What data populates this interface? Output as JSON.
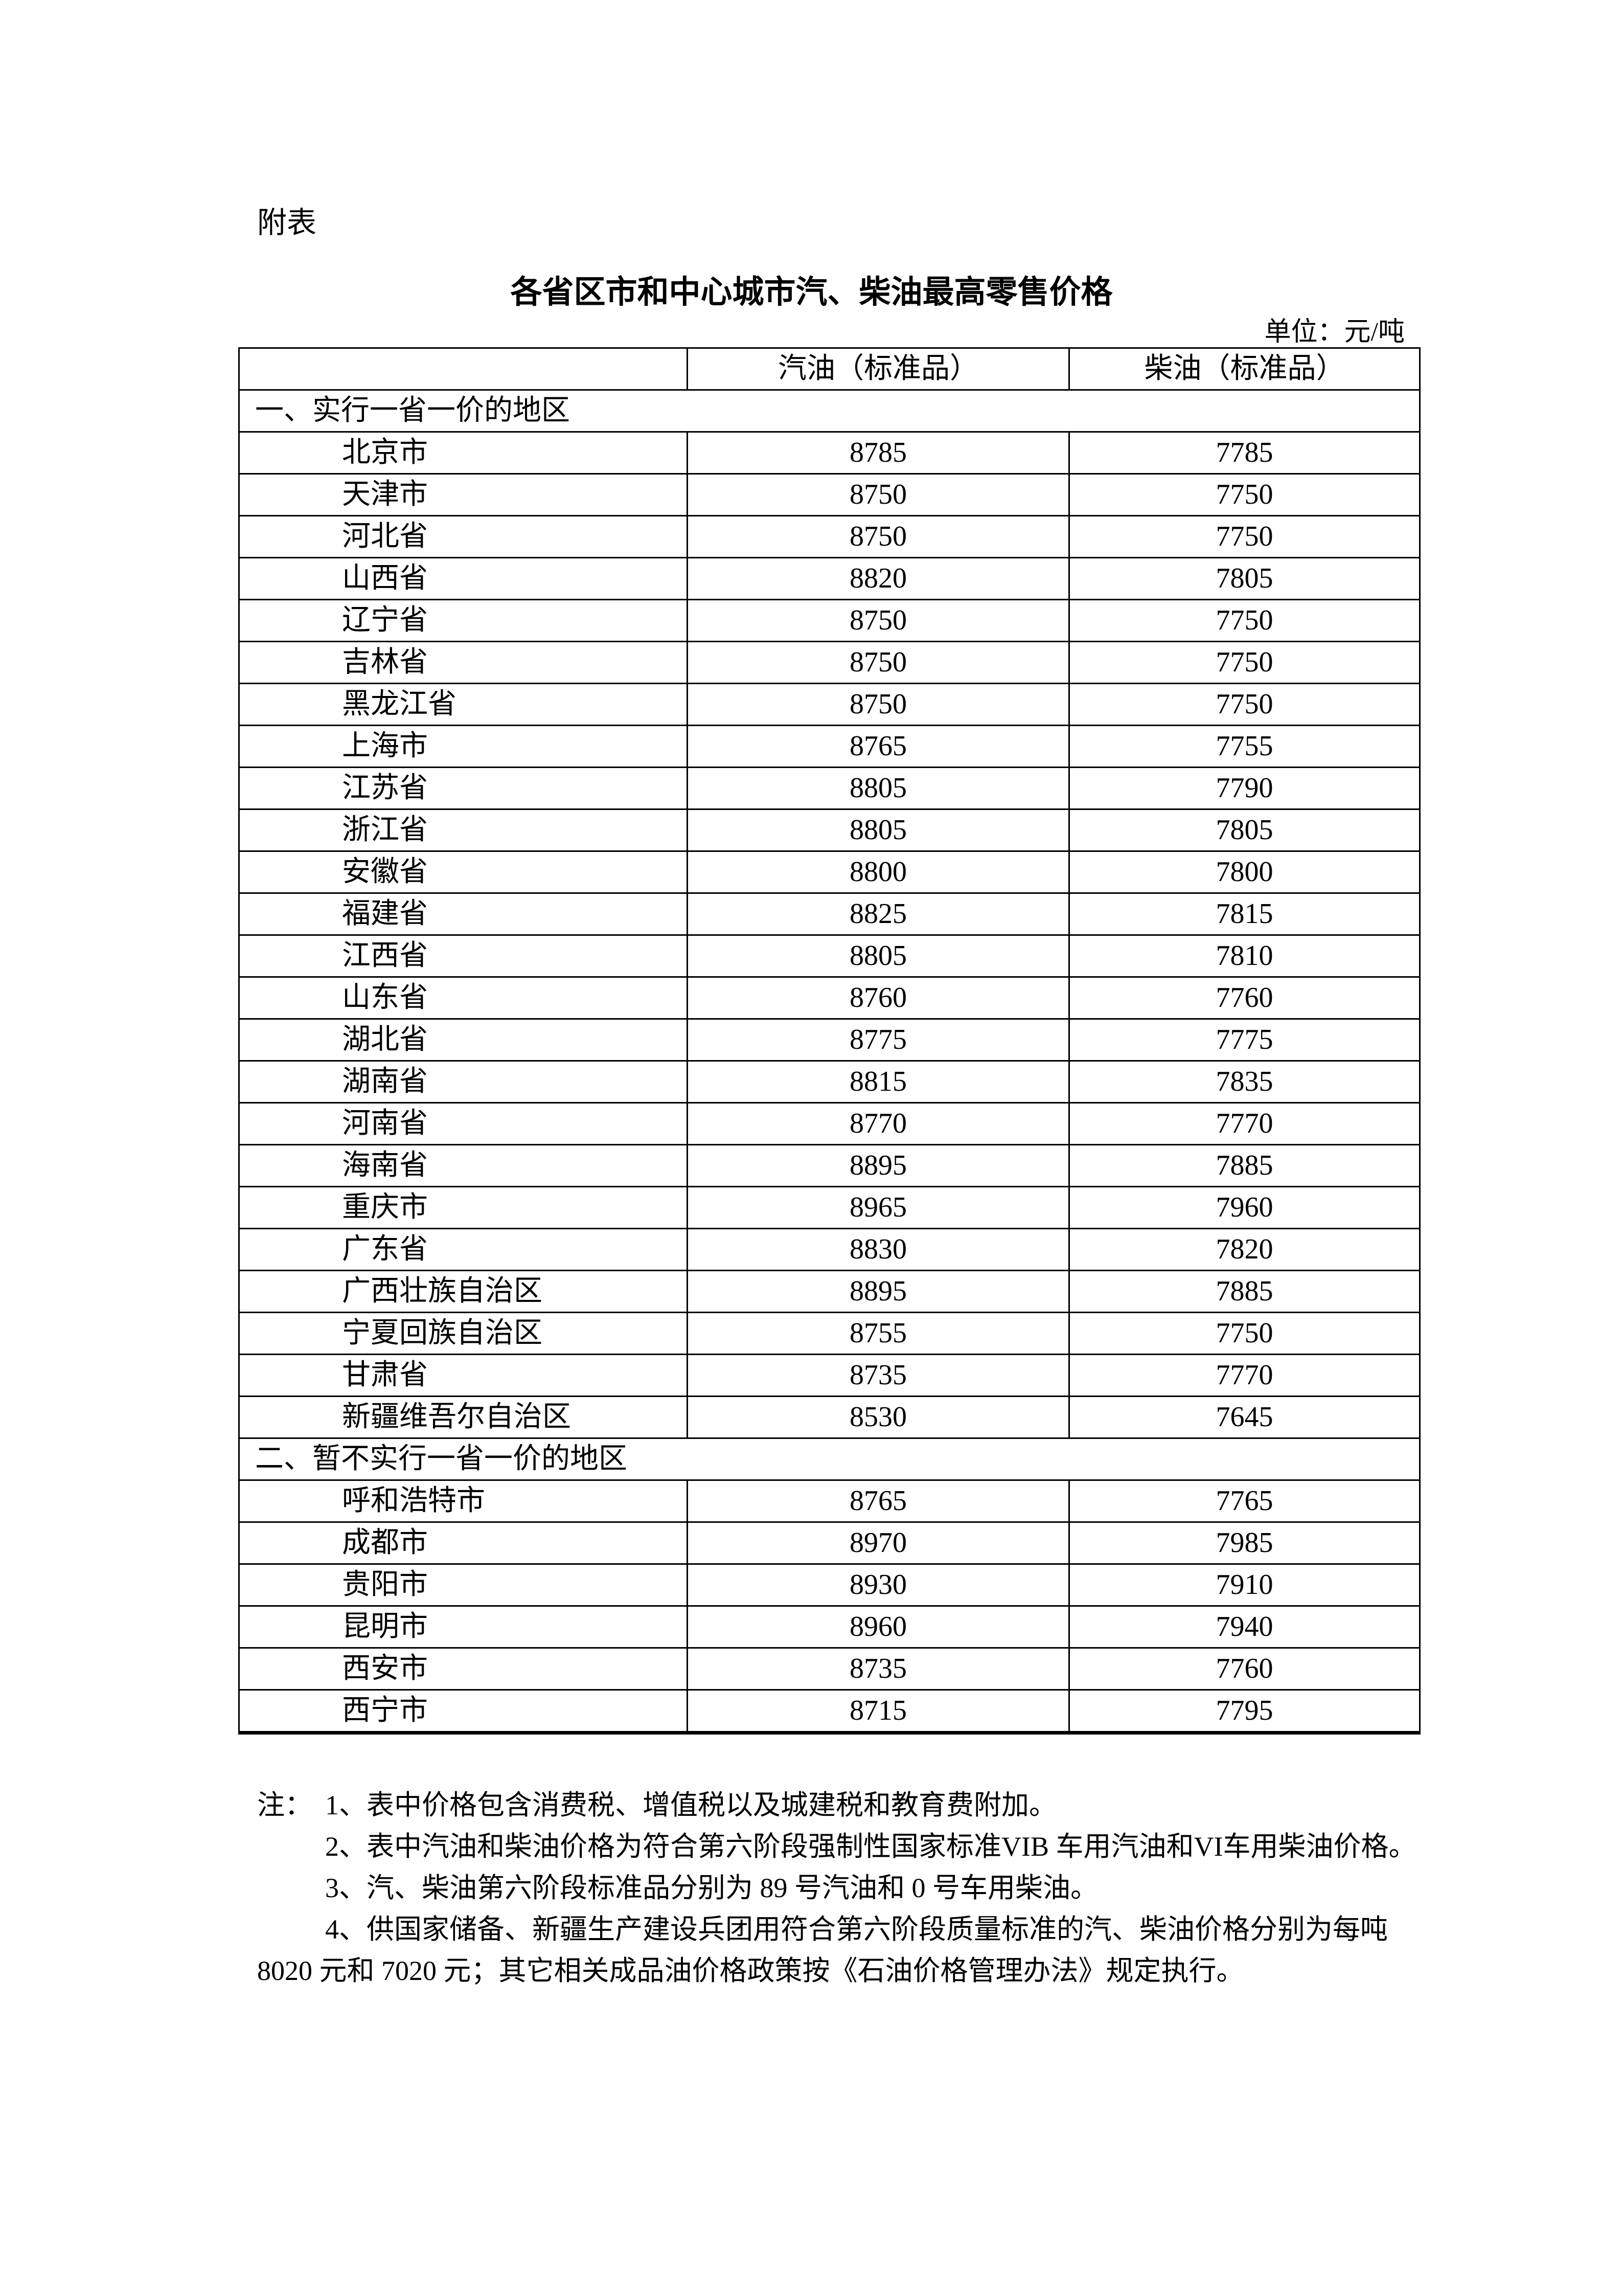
{
  "attachment_label": "附表",
  "title": "各省区市和中心城市汽、柴油最高零售价格",
  "unit": "单位：元/吨",
  "table": {
    "headers": [
      "",
      "汽油（标准品）",
      "柴油（标准品）"
    ],
    "sections": [
      {
        "label": "一、实行一省一价的地区",
        "rows": [
          [
            "北京市",
            "8785",
            "7785"
          ],
          [
            "天津市",
            "8750",
            "7750"
          ],
          [
            "河北省",
            "8750",
            "7750"
          ],
          [
            "山西省",
            "8820",
            "7805"
          ],
          [
            "辽宁省",
            "8750",
            "7750"
          ],
          [
            "吉林省",
            "8750",
            "7750"
          ],
          [
            "黑龙江省",
            "8750",
            "7750"
          ],
          [
            "上海市",
            "8765",
            "7755"
          ],
          [
            "江苏省",
            "8805",
            "7790"
          ],
          [
            "浙江省",
            "8805",
            "7805"
          ],
          [
            "安徽省",
            "8800",
            "7800"
          ],
          [
            "福建省",
            "8825",
            "7815"
          ],
          [
            "江西省",
            "8805",
            "7810"
          ],
          [
            "山东省",
            "8760",
            "7760"
          ],
          [
            "湖北省",
            "8775",
            "7775"
          ],
          [
            "湖南省",
            "8815",
            "7835"
          ],
          [
            "河南省",
            "8770",
            "7770"
          ],
          [
            "海南省",
            "8895",
            "7885"
          ],
          [
            "重庆市",
            "8965",
            "7960"
          ],
          [
            "广东省",
            "8830",
            "7820"
          ],
          [
            "广西壮族自治区",
            "8895",
            "7885"
          ],
          [
            "宁夏回族自治区",
            "8755",
            "7750"
          ],
          [
            "甘肃省",
            "8735",
            "7770"
          ],
          [
            "新疆维吾尔自治区",
            "8530",
            "7645"
          ]
        ]
      },
      {
        "label": "二、暂不实行一省一价的地区",
        "rows": [
          [
            "呼和浩特市",
            "8765",
            "7765"
          ],
          [
            "成都市",
            "8970",
            "7985"
          ],
          [
            "贵阳市",
            "8930",
            "7910"
          ],
          [
            "昆明市",
            "8960",
            "7940"
          ],
          [
            "西安市",
            "8735",
            "7760"
          ],
          [
            "西宁市",
            "8715",
            "7795"
          ]
        ]
      }
    ]
  },
  "notes": {
    "prefix": "注：",
    "items": [
      "1、表中价格包含消费税、增值税以及城建税和教育费附加。",
      "2、表中汽油和柴油价格为符合第六阶段强制性国家标准VIB 车用汽油和VI车用柴油价格。",
      "3、汽、柴油第六阶段标准品分别为 89 号汽油和 0 号车用柴油。",
      "4、供国家储备、新疆生产建设兵团用符合第六阶段质量标准的汽、柴油价格分别为每吨8020 元和 7020 元；其它相关成品油价格政策按《石油价格管理办法》规定执行。"
    ]
  }
}
